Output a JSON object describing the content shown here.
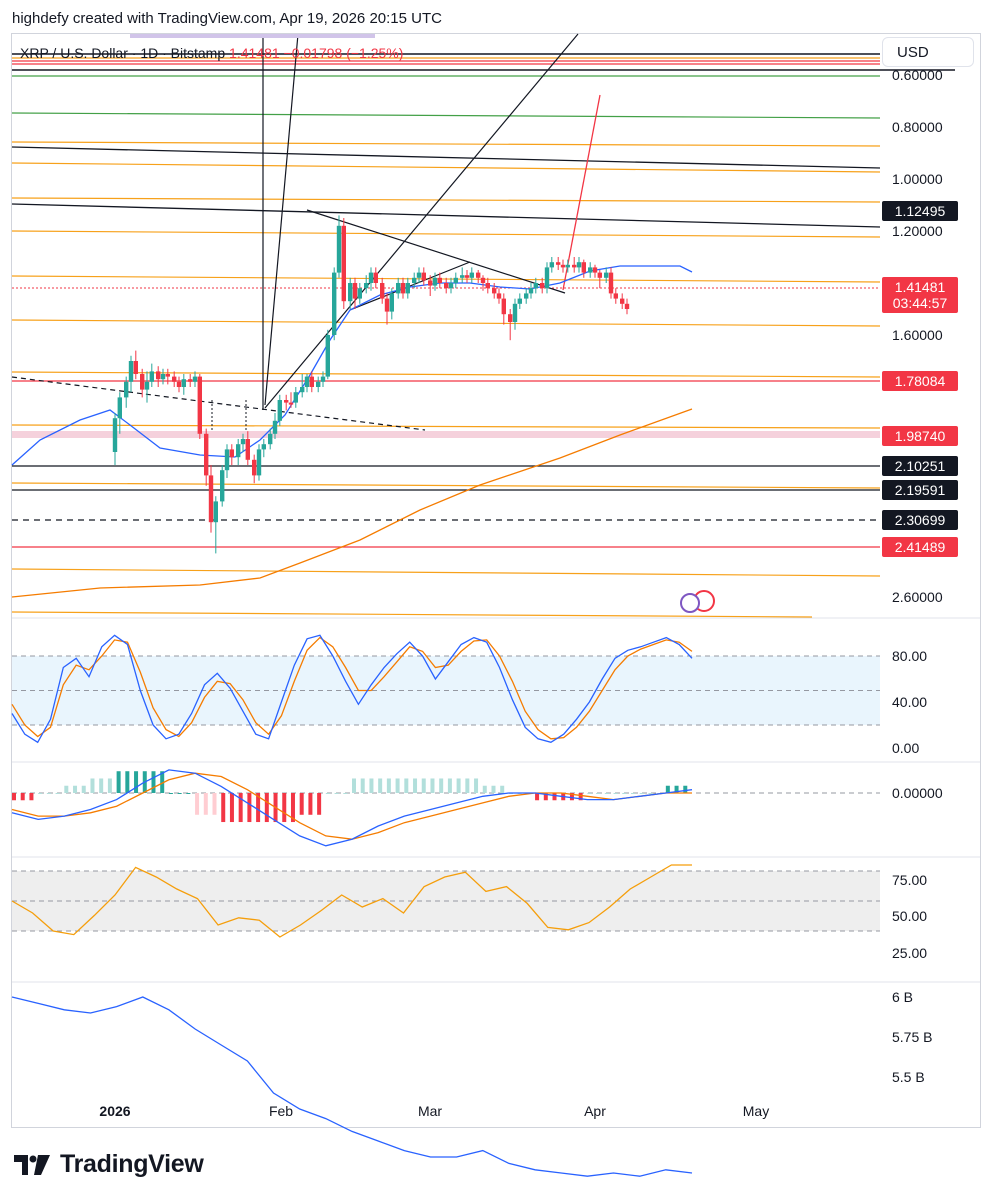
{
  "caption": "highdefy created with TradingView.com, Apr 19, 2026 20:15 UTC",
  "symbol_legend": {
    "symbol": "XRP / U.S. Dollar · 1D · Bitstamp",
    "price": "1.41481",
    "change": "−0.01798 (−1.25%)"
  },
  "currency_button": "USD",
  "brand": "TradingView",
  "colors": {
    "up": "#26a69a",
    "down": "#f23645",
    "orange": "#f7a11a",
    "blue": "#2962ff",
    "ema200": "#f57c00",
    "stoch_k": "#2962ff",
    "stoch_d": "#f57c00",
    "rsi": "#f59e0b",
    "green_line": "#43a047",
    "band": "#f3c6d3"
  },
  "chart_data": {
    "type": "candlestick",
    "price_axis": {
      "scale": "inverted",
      "ticks": [
        "0.60000",
        "0.80000",
        "1.00000",
        "1.20000",
        "1.60000",
        "2.60000"
      ],
      "labels": [
        {
          "text": "1.12495",
          "color": "#131722"
        },
        {
          "text": "1.41481",
          "color": "#f23645"
        },
        {
          "text": "03:44:57",
          "color": "#f23645"
        },
        {
          "text": "1.78084",
          "color": "#f23645"
        },
        {
          "text": "1.98740",
          "color": "#f23645"
        },
        {
          "text": "2.10251",
          "color": "#131722"
        },
        {
          "text": "2.19591",
          "color": "#131722"
        },
        {
          "text": "2.30699",
          "color": "#131722"
        },
        {
          "text": "2.41489",
          "color": "#f23645"
        }
      ]
    },
    "time_axis": [
      "2026",
      "Feb",
      "Mar",
      "Apr",
      "May"
    ],
    "candles": [
      [
        0.0,
        2.05,
        1.92,
        2.1,
        1.9
      ],
      [
        0.03,
        1.92,
        1.84,
        1.98,
        1.82
      ],
      [
        0.07,
        1.84,
        1.78,
        1.88,
        1.76
      ],
      [
        0.1,
        1.78,
        1.7,
        1.82,
        1.68
      ],
      [
        0.13,
        1.7,
        1.75,
        1.77,
        1.66
      ],
      [
        0.17,
        1.75,
        1.81,
        1.84,
        1.73
      ],
      [
        0.2,
        1.81,
        1.78,
        1.86,
        1.74
      ],
      [
        0.23,
        1.78,
        1.74,
        1.8,
        1.71
      ],
      [
        0.27,
        1.74,
        1.77,
        1.8,
        1.72
      ],
      [
        0.3,
        1.77,
        1.75,
        1.79,
        1.73
      ],
      [
        0.33,
        1.75,
        1.76,
        1.79,
        1.73
      ],
      [
        0.37,
        1.76,
        1.78,
        1.8,
        1.74
      ],
      [
        0.4,
        1.78,
        1.8,
        1.82,
        1.76
      ],
      [
        0.43,
        1.8,
        1.77,
        1.83,
        1.75
      ],
      [
        0.47,
        1.77,
        1.78,
        1.8,
        1.75
      ],
      [
        0.5,
        1.78,
        1.76,
        1.8,
        1.74
      ],
      [
        0.53,
        1.76,
        1.98,
        2.0,
        1.75
      ],
      [
        0.57,
        1.98,
        2.14,
        2.18,
        1.96
      ],
      [
        0.6,
        2.14,
        2.32,
        2.36,
        2.1
      ],
      [
        0.63,
        2.32,
        2.24,
        2.44,
        2.22
      ],
      [
        0.67,
        2.24,
        2.12,
        2.26,
        2.1
      ],
      [
        0.7,
        2.12,
        2.04,
        2.15,
        2.02
      ],
      [
        0.73,
        2.04,
        2.07,
        2.1,
        2.02
      ],
      [
        0.77,
        2.07,
        2.02,
        2.1,
        2.0
      ],
      [
        0.8,
        2.02,
        2.0,
        2.05,
        1.98
      ],
      [
        0.83,
        2.0,
        2.08,
        2.1,
        1.97
      ],
      [
        0.87,
        2.08,
        2.14,
        2.17,
        2.06
      ],
      [
        0.9,
        2.14,
        2.04,
        2.16,
        2.02
      ],
      [
        0.93,
        2.04,
        2.02,
        2.07,
        2.0
      ],
      [
        0.97,
        2.02,
        1.98,
        2.04,
        1.96
      ],
      [
        1.0,
        1.98,
        1.93,
        2.0,
        1.9
      ],
      [
        1.03,
        1.93,
        1.85,
        1.95,
        1.83
      ],
      [
        1.07,
        1.85,
        1.86,
        1.89,
        1.83
      ],
      [
        1.1,
        1.86,
        1.86,
        1.88,
        1.82
      ],
      [
        1.13,
        1.86,
        1.82,
        1.88,
        1.8
      ],
      [
        1.17,
        1.82,
        1.8,
        1.84,
        1.75
      ],
      [
        1.2,
        1.8,
        1.76,
        1.82,
        1.75
      ],
      [
        1.23,
        1.76,
        1.8,
        1.82,
        1.74
      ],
      [
        1.27,
        1.8,
        1.78,
        1.82,
        1.76
      ],
      [
        1.3,
        1.78,
        1.76,
        1.8,
        1.74
      ],
      [
        1.33,
        1.76,
        1.6,
        1.77,
        1.58
      ],
      [
        1.37,
        1.6,
        1.36,
        1.62,
        1.34
      ],
      [
        1.4,
        1.36,
        1.18,
        1.38,
        1.14
      ],
      [
        1.43,
        1.18,
        1.47,
        1.5,
        1.15
      ],
      [
        1.47,
        1.47,
        1.4,
        1.5,
        1.38
      ],
      [
        1.5,
        1.4,
        1.46,
        1.5,
        1.38
      ],
      [
        1.53,
        1.46,
        1.42,
        1.48,
        1.4
      ],
      [
        1.57,
        1.42,
        1.4,
        1.44,
        1.37
      ],
      [
        1.6,
        1.4,
        1.36,
        1.43,
        1.34
      ],
      [
        1.63,
        1.36,
        1.4,
        1.42,
        1.34
      ],
      [
        1.67,
        1.4,
        1.46,
        1.48,
        1.38
      ],
      [
        1.7,
        1.46,
        1.51,
        1.56,
        1.44
      ],
      [
        1.73,
        1.51,
        1.44,
        1.54,
        1.42
      ],
      [
        1.77,
        1.44,
        1.4,
        1.46,
        1.38
      ],
      [
        1.8,
        1.4,
        1.44,
        1.46,
        1.38
      ],
      [
        1.83,
        1.44,
        1.4,
        1.46,
        1.38
      ],
      [
        1.87,
        1.4,
        1.38,
        1.42,
        1.36
      ],
      [
        1.9,
        1.38,
        1.36,
        1.4,
        1.34
      ],
      [
        1.93,
        1.36,
        1.39,
        1.41,
        1.34
      ],
      [
        1.97,
        1.39,
        1.41,
        1.45,
        1.37
      ],
      [
        2.0,
        1.41,
        1.38,
        1.43,
        1.36
      ],
      [
        2.03,
        1.38,
        1.4,
        1.42,
        1.36
      ],
      [
        2.07,
        1.4,
        1.42,
        1.44,
        1.38
      ],
      [
        2.1,
        1.42,
        1.4,
        1.44,
        1.38
      ],
      [
        2.13,
        1.4,
        1.38,
        1.42,
        1.36
      ],
      [
        2.17,
        1.38,
        1.37,
        1.4,
        1.34
      ],
      [
        2.2,
        1.37,
        1.38,
        1.4,
        1.35
      ],
      [
        2.23,
        1.38,
        1.36,
        1.4,
        1.34
      ],
      [
        2.27,
        1.36,
        1.38,
        1.4,
        1.35
      ],
      [
        2.3,
        1.38,
        1.4,
        1.43,
        1.37
      ],
      [
        2.33,
        1.4,
        1.42,
        1.44,
        1.38
      ],
      [
        2.37,
        1.42,
        1.44,
        1.46,
        1.4
      ],
      [
        2.4,
        1.44,
        1.46,
        1.48,
        1.42
      ],
      [
        2.43,
        1.46,
        1.52,
        1.56,
        1.44
      ],
      [
        2.47,
        1.52,
        1.55,
        1.62,
        1.5
      ],
      [
        2.5,
        1.55,
        1.48,
        1.58,
        1.46
      ],
      [
        2.53,
        1.48,
        1.46,
        1.5,
        1.44
      ],
      [
        2.57,
        1.46,
        1.44,
        1.48,
        1.42
      ],
      [
        2.6,
        1.44,
        1.42,
        1.46,
        1.4
      ],
      [
        2.63,
        1.42,
        1.4,
        1.44,
        1.38
      ],
      [
        2.67,
        1.4,
        1.42,
        1.44,
        1.38
      ],
      [
        2.7,
        1.42,
        1.34,
        1.44,
        1.32
      ],
      [
        2.73,
        1.34,
        1.32,
        1.36,
        1.3
      ],
      [
        2.77,
        1.32,
        1.33,
        1.35,
        1.3
      ],
      [
        2.8,
        1.33,
        1.34,
        1.36,
        1.31
      ],
      [
        2.83,
        1.34,
        1.33,
        1.36,
        1.31
      ],
      [
        2.87,
        1.33,
        1.34,
        1.36,
        1.3
      ],
      [
        2.9,
        1.34,
        1.32,
        1.36,
        1.3
      ],
      [
        2.93,
        1.32,
        1.36,
        1.38,
        1.31
      ],
      [
        2.97,
        1.36,
        1.34,
        1.38,
        1.32
      ],
      [
        3.0,
        1.34,
        1.36,
        1.38,
        1.33
      ],
      [
        3.03,
        1.36,
        1.38,
        1.42,
        1.35
      ],
      [
        3.07,
        1.38,
        1.36,
        1.4,
        1.34
      ],
      [
        3.1,
        1.36,
        1.44,
        1.46,
        1.34
      ],
      [
        3.13,
        1.44,
        1.46,
        1.48,
        1.42
      ],
      [
        3.17,
        1.46,
        1.48,
        1.5,
        1.44
      ],
      [
        3.2,
        1.48,
        1.5,
        1.52,
        1.46
      ]
    ],
    "stochastic_rsi": {
      "ticks": [
        "80.00",
        "40.00",
        "0.00"
      ],
      "k": [
        30,
        12,
        5,
        25,
        70,
        78,
        62,
        88,
        98,
        90,
        50,
        20,
        8,
        12,
        30,
        55,
        65,
        52,
        32,
        12,
        8,
        40,
        72,
        95,
        98,
        80,
        58,
        38,
        55,
        70,
        82,
        92,
        80,
        60,
        75,
        90,
        96,
        92,
        70,
        42,
        18,
        8,
        5,
        12,
        25,
        40,
        60,
        78,
        85,
        88,
        92,
        96,
        90,
        78
      ],
      "d": [
        38,
        20,
        10,
        18,
        55,
        72,
        68,
        80,
        94,
        92,
        66,
        35,
        16,
        10,
        22,
        44,
        58,
        56,
        42,
        22,
        12,
        28,
        58,
        85,
        96,
        88,
        70,
        50,
        50,
        62,
        75,
        88,
        84,
        70,
        72,
        84,
        93,
        94,
        80,
        58,
        32,
        16,
        8,
        9,
        18,
        32,
        50,
        68,
        80,
        86,
        90,
        94,
        92,
        84
      ]
    },
    "macd": {
      "ticks": [
        "0.00000"
      ],
      "macd": [
        -0.06,
        -0.08,
        -0.07,
        -0.05,
        -0.02,
        0.03,
        0.07,
        0.06,
        0.02,
        -0.03,
        -0.08,
        -0.13,
        -0.16,
        -0.14,
        -0.1,
        -0.07,
        -0.05,
        -0.03,
        -0.01,
        0.0,
        0.0,
        -0.01,
        -0.02,
        -0.02,
        -0.01,
        0.0,
        0.01
      ],
      "signal": [
        -0.05,
        -0.07,
        -0.07,
        -0.06,
        -0.04,
        0.0,
        0.04,
        0.06,
        0.05,
        0.01,
        -0.04,
        -0.09,
        -0.13,
        -0.14,
        -0.12,
        -0.09,
        -0.07,
        -0.05,
        -0.03,
        -0.01,
        0.0,
        0.0,
        -0.01,
        -0.02,
        -0.01,
        0.0,
        0.0
      ]
    },
    "rsi": {
      "ticks": [
        "75.00",
        "50.00",
        "25.00"
      ],
      "values": [
        50,
        40,
        25,
        22,
        38,
        55,
        78,
        70,
        60,
        52,
        30,
        36,
        34,
        20,
        30,
        42,
        55,
        45,
        52,
        40,
        62,
        70,
        74,
        58,
        62,
        48,
        28,
        26,
        32,
        45,
        60,
        70,
        80,
        80
      ]
    },
    "volume": {
      "ticks": [
        "6 B",
        "5.75 B",
        "5.5 B"
      ],
      "values": [
        6.0,
        5.98,
        5.96,
        5.95,
        5.97,
        6.0,
        5.96,
        5.9,
        5.85,
        5.8,
        5.7,
        5.65,
        5.62,
        5.58,
        5.55,
        5.52,
        5.5,
        5.5,
        5.52,
        5.48,
        5.46,
        5.45,
        5.44,
        5.45,
        5.44,
        5.46,
        5.45
      ]
    }
  }
}
